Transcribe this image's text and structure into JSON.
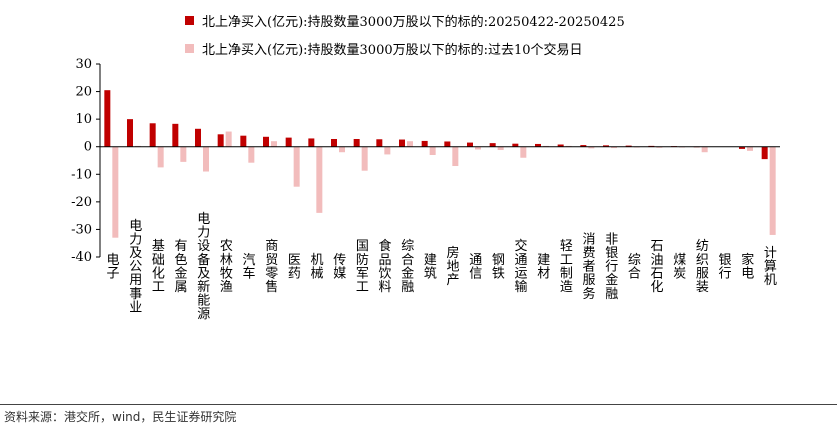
{
  "source": "资料来源：港交所，wind，民生证券研究院",
  "colors": {
    "series_recent": "#C00000",
    "series_past": "#F2BCBC",
    "axis": "#000000",
    "text": "#000000"
  },
  "chart_data": {
    "type": "bar",
    "title": "",
    "xlabel": "",
    "ylabel": "",
    "ylim": [
      -40,
      30
    ],
    "yticks": [
      -40,
      -30,
      -20,
      -10,
      0,
      10,
      20,
      30
    ],
    "grid": false,
    "legend_position": "top-left",
    "categories": [
      "电子",
      "电力及公用事业",
      "基础化工",
      "有色金属",
      "电力设备及新能源",
      "农林牧渔",
      "汽车",
      "商贸零售",
      "医药",
      "机械",
      "传媒",
      "国防军工",
      "食品饮料",
      "综合金融",
      "建筑",
      "房地产",
      "通信",
      "钢铁",
      "交通运输",
      "建材",
      "轻工制造",
      "消费者服务",
      "非银行金融",
      "综合",
      "石油石化",
      "煤炭",
      "纺织服装",
      "银行",
      "家电",
      "计算机"
    ],
    "series": [
      {
        "name": "北上净买入(亿元):持股数量3000万股以下的标的:20250422-20250425",
        "values": [
          20.5,
          10.0,
          8.5,
          8.3,
          6.5,
          4.5,
          4.0,
          3.6,
          3.3,
          3.0,
          2.8,
          2.8,
          2.7,
          2.6,
          2.1,
          1.9,
          1.5,
          1.3,
          1.1,
          1.0,
          0.8,
          0.6,
          0.5,
          0.4,
          0.3,
          0.2,
          0.1,
          0.0,
          -0.8,
          -4.5
        ]
      },
      {
        "name": "北上净买入(亿元):持股数量3000万股以下的标的:过去10个交易日",
        "values": [
          -33.0,
          0.3,
          -7.5,
          -5.5,
          -9.0,
          5.5,
          -5.8,
          2.0,
          -14.5,
          -24.0,
          -2.0,
          -8.7,
          -2.8,
          2.0,
          -3.0,
          -7.0,
          -1.0,
          -1.2,
          -4.0,
          0.3,
          0.3,
          -0.6,
          -0.5,
          -0.3,
          -0.4,
          -0.2,
          -2.0,
          0.0,
          -1.5,
          -32.0
        ]
      }
    ]
  }
}
